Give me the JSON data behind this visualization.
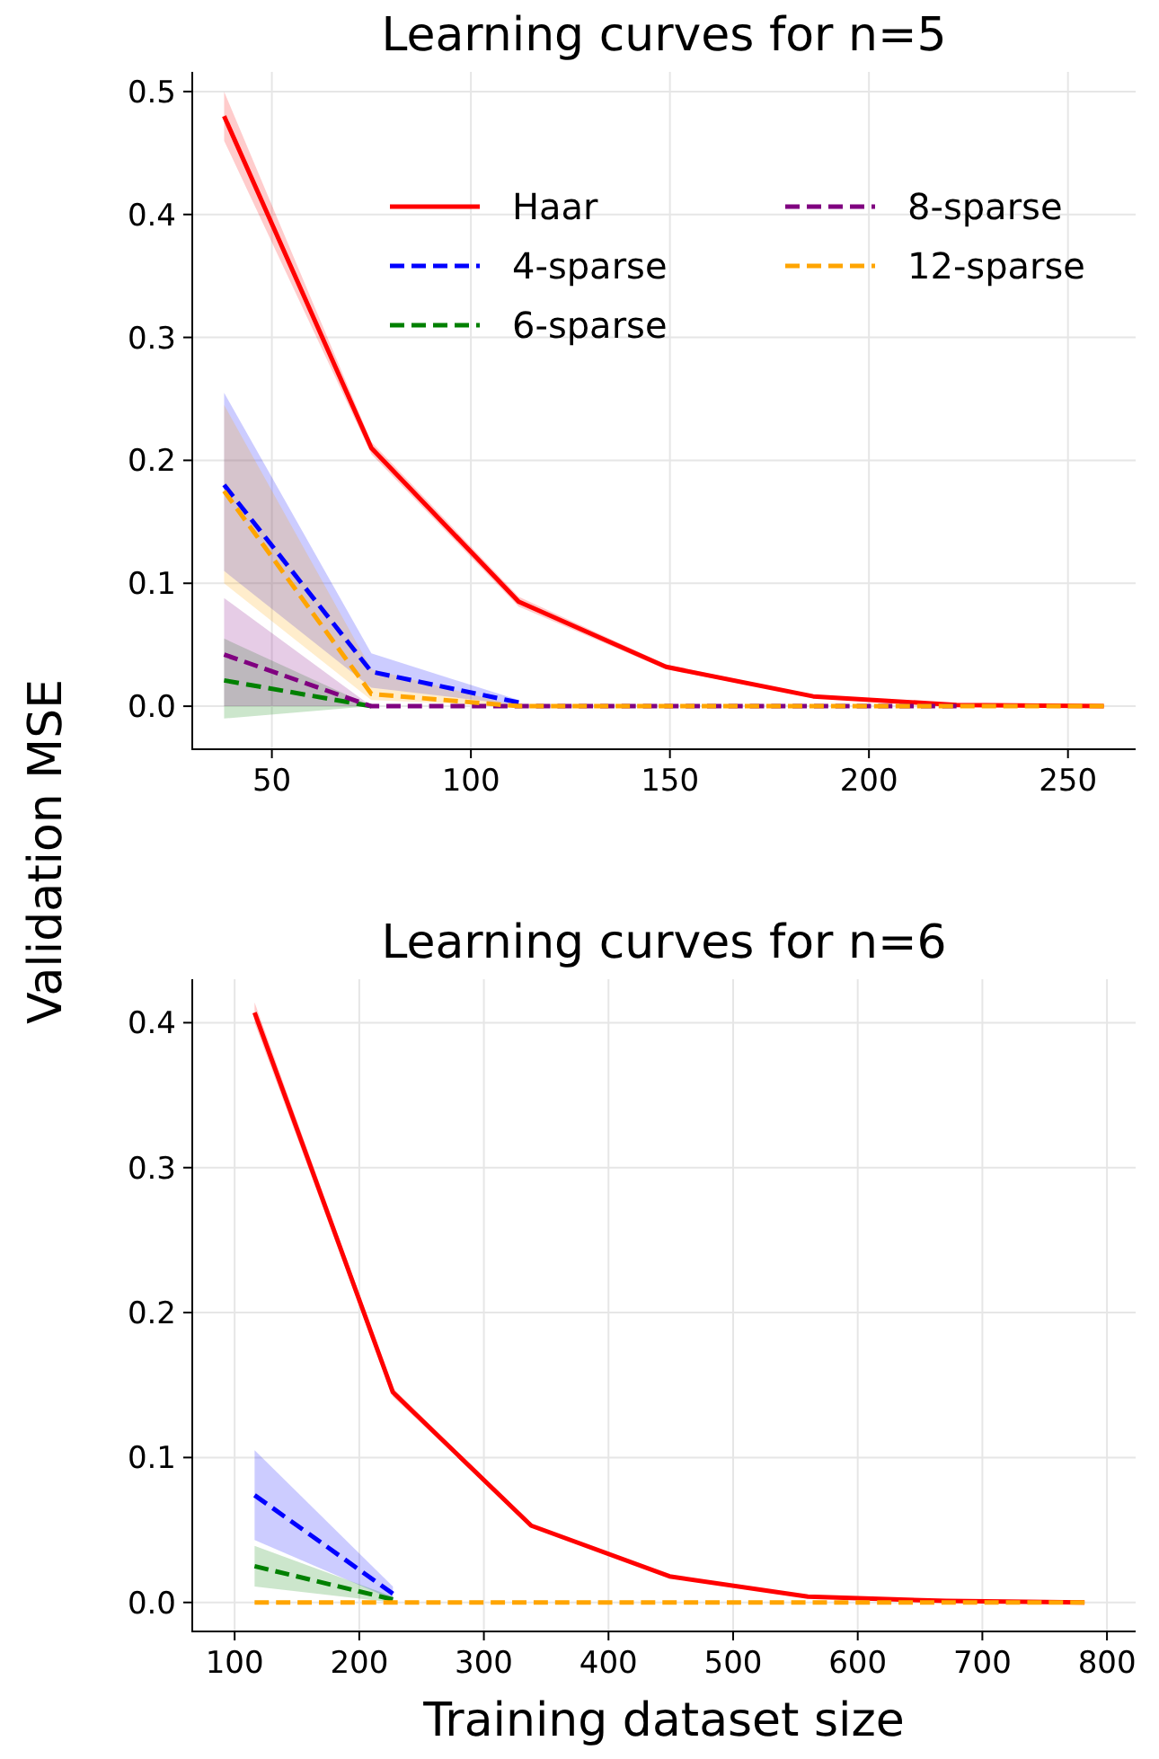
{
  "chart_data": [
    {
      "type": "line",
      "title": "Learning curves for n=5",
      "ylabel": "Validation MSE",
      "x": [
        38,
        75,
        112,
        149,
        186,
        222,
        259
      ],
      "xlim": [
        30,
        267
      ],
      "xticks": [
        50,
        100,
        150,
        200,
        250
      ],
      "ylim": [
        -0.035,
        0.516
      ],
      "yticks": [
        {
          "value": 0,
          "label": "0.0"
        },
        0.1,
        0.2,
        0.3,
        0.4,
        0.5
      ],
      "grid": true,
      "legend": "top right",
      "series": [
        {
          "name": "Haar",
          "color": "#ff0000",
          "line_style": "solid",
          "values": [
            0.48,
            0.21,
            0.085,
            0.032,
            0.008,
            0.001,
            0
          ],
          "lower": [
            0.46,
            0.205,
            0.081,
            0.03,
            0.007,
            0.0005,
            0
          ],
          "upper": [
            0.5,
            0.215,
            0.089,
            0.034,
            0.009,
            0.0015,
            0
          ]
        },
        {
          "name": "4-sparse",
          "color": "#0000ff",
          "line_style": "dashed",
          "values": [
            0.18,
            0.028,
            0.003,
            null,
            null,
            null,
            null
          ],
          "lower": [
            0.11,
            0.015,
            0.001,
            null,
            null,
            null,
            null
          ],
          "upper": [
            0.255,
            0.043,
            0.005,
            null,
            null,
            null,
            null
          ]
        },
        {
          "name": "6-sparse",
          "color": "#008000",
          "line_style": "dashed",
          "values": [
            0.021,
            0,
            null,
            null,
            null,
            null,
            null
          ],
          "lower": [
            -0.01,
            0,
            null,
            null,
            null,
            null,
            null
          ],
          "upper": [
            0.055,
            0,
            null,
            null,
            null,
            null,
            null
          ]
        },
        {
          "name": "8-sparse",
          "color": "#800080",
          "line_style": "dashed",
          "values": [
            0.042,
            0,
            0,
            0,
            0,
            0,
            null
          ],
          "lower": [
            0,
            0,
            0,
            0,
            0,
            0,
            null
          ],
          "upper": [
            0.088,
            0,
            0,
            0,
            0,
            0,
            null
          ]
        },
        {
          "name": "12-sparse",
          "color": "#ffa500",
          "line_style": "dashed",
          "values": [
            0.175,
            0.01,
            0,
            0,
            0,
            0,
            0
          ],
          "lower": [
            0.1,
            0.005,
            0,
            0,
            0,
            0,
            0
          ],
          "upper": [
            0.245,
            0.03,
            0,
            0,
            0,
            0,
            0
          ]
        }
      ]
    },
    {
      "type": "line",
      "title": "Learning curves for n=6",
      "xlabel": "Training dataset size",
      "x": [
        116,
        227,
        338,
        449,
        560,
        671,
        782
      ],
      "xlim": [
        66,
        823
      ],
      "xticks": [
        100,
        200,
        300,
        400,
        500,
        600,
        700,
        800
      ],
      "ylim": [
        -0.02,
        0.43
      ],
      "yticks": [
        {
          "value": 0,
          "label": "0.0"
        },
        0.1,
        0.2,
        0.3,
        0.4
      ],
      "grid": true,
      "series": [
        {
          "color": "#ff0000",
          "line_style": "solid",
          "values": [
            0.407,
            0.145,
            0.053,
            0.018,
            0.004,
            0.001,
            0
          ],
          "lower": [
            0.4,
            0.142,
            0.052,
            0.017,
            0.0035,
            0.0005,
            0
          ],
          "upper": [
            0.414,
            0.148,
            0.054,
            0.019,
            0.0045,
            0.0015,
            0
          ]
        },
        {
          "color": "#0000ff",
          "line_style": "dashed",
          "values": [
            0.074,
            0.006,
            null,
            null,
            null,
            null,
            null
          ],
          "lower": [
            0.043,
            0.002,
            null,
            null,
            null,
            null,
            null
          ],
          "upper": [
            0.105,
            0.011,
            null,
            null,
            null,
            null,
            null
          ]
        },
        {
          "color": "#008000",
          "line_style": "dashed",
          "values": [
            0.025,
            0.002,
            null,
            null,
            null,
            null,
            null
          ],
          "lower": [
            0.011,
            0,
            null,
            null,
            null,
            null,
            null
          ],
          "upper": [
            0.039,
            0.004,
            null,
            null,
            null,
            null,
            null
          ]
        },
        {
          "color": "#800080",
          "line_style": "dashed",
          "values": [
            null,
            null,
            null,
            null,
            null,
            null,
            null
          ]
        },
        {
          "color": "#ffa500",
          "line_style": "dashed",
          "values": [
            0,
            0,
            0,
            0,
            0,
            0,
            0
          ]
        }
      ]
    }
  ]
}
